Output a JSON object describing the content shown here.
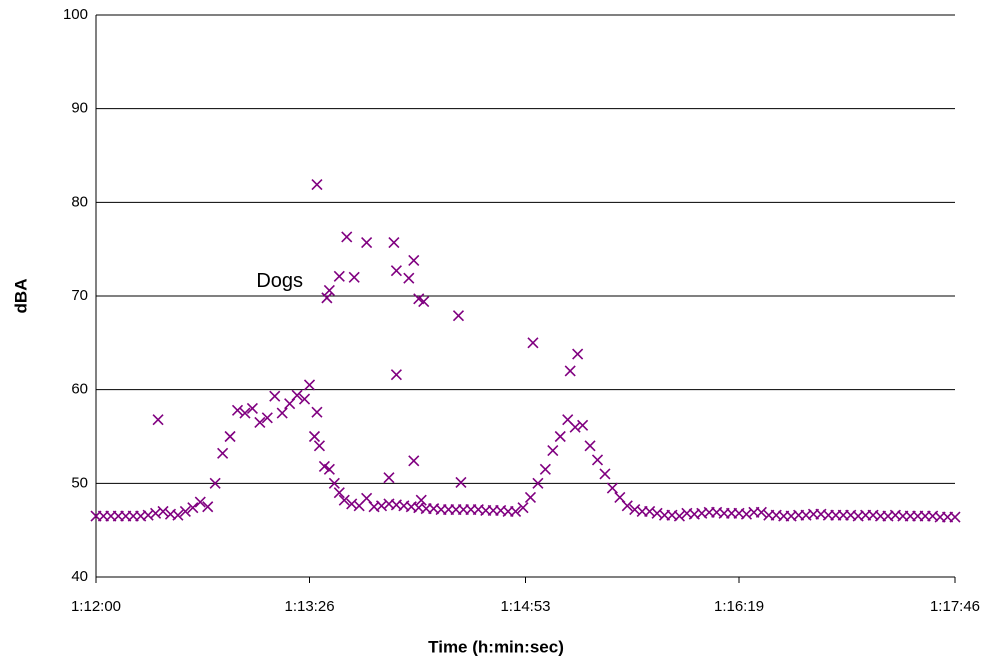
{
  "chart_data": {
    "type": "scatter",
    "x_label": "Time (h:min:sec)",
    "y_label": "dBA",
    "annotations": [
      {
        "text": "Dogs",
        "x": 4394,
        "y": 71.5
      }
    ],
    "xlim": [
      4320,
      4666
    ],
    "xticks": [
      {
        "value": 4320,
        "label": "1:12:00"
      },
      {
        "value": 4406,
        "label": "1:13:26"
      },
      {
        "value": 4493,
        "label": "1:14:53"
      },
      {
        "value": 4579,
        "label": "1:16:19"
      },
      {
        "value": 4666,
        "label": "1:17:46"
      }
    ],
    "ylim": [
      40,
      100
    ],
    "yticks": [
      40,
      50,
      60,
      70,
      80,
      90,
      100
    ],
    "grid": true,
    "series": [
      {
        "color": "#800080",
        "marker": "x",
        "x": [
          4320,
          4323,
          4326,
          4329,
          4332,
          4335,
          4338,
          4341,
          4344,
          4347,
          4350,
          4353,
          4356,
          4359,
          4362,
          4365,
          4368,
          4371,
          4374,
          4377,
          4380,
          4383,
          4386,
          4389,
          4392,
          4395,
          4398,
          4401,
          4404,
          4406,
          4408,
          4410,
          4412,
          4414,
          4416,
          4418,
          4420,
          4423,
          4426,
          4429,
          4432,
          4435,
          4438,
          4441,
          4444,
          4447,
          4450,
          4453,
          4456,
          4459,
          4462,
          4465,
          4468,
          4471,
          4474,
          4477,
          4480,
          4483,
          4486,
          4489,
          4492,
          4495,
          4498,
          4501,
          4504,
          4507,
          4510,
          4513,
          4516,
          4519,
          4522,
          4525,
          4528,
          4531,
          4534,
          4537,
          4540,
          4543,
          4546,
          4549,
          4552,
          4555,
          4558,
          4561,
          4564,
          4567,
          4570,
          4573,
          4576,
          4579,
          4582,
          4585,
          4588,
          4591,
          4594,
          4597,
          4600,
          4603,
          4606,
          4609,
          4612,
          4615,
          4618,
          4621,
          4624,
          4627,
          4630,
          4633,
          4636,
          4639,
          4642,
          4645,
          4648,
          4651,
          4654,
          4657,
          4660,
          4663,
          4666,
          4345,
          4409,
          4421,
          4418,
          4424,
          4429,
          4440,
          4441,
          4446,
          4448,
          4450,
          4452,
          4413,
          4414,
          4466,
          4496,
          4511,
          4514,
          4441,
          4448,
          4438,
          4467,
          4409,
          4451
        ],
        "values": [
          46.5,
          46.5,
          46.5,
          46.5,
          46.5,
          46.5,
          46.5,
          46.6,
          46.8,
          47,
          46.7,
          46.6,
          47,
          47.4,
          48,
          47.5,
          50,
          53.2,
          55,
          57.8,
          57.5,
          58,
          56.5,
          57,
          59.3,
          57.5,
          58.5,
          59.4,
          59,
          60.5,
          55,
          54,
          51.8,
          51.5,
          50,
          49,
          48.2,
          47.8,
          47.6,
          48.4,
          47.5,
          47.6,
          47.8,
          47.7,
          47.6,
          47.5,
          47.4,
          47.3,
          47.3,
          47.2,
          47.2,
          47.2,
          47.2,
          47.2,
          47.2,
          47.1,
          47.1,
          47.1,
          47,
          47,
          47.4,
          48.5,
          50,
          51.5,
          53.5,
          55,
          56.8,
          56,
          56.2,
          54,
          52.5,
          51,
          49.5,
          48.5,
          47.6,
          47.2,
          47,
          47,
          46.8,
          46.6,
          46.6,
          46.5,
          46.8,
          46.7,
          46.8,
          46.9,
          46.9,
          46.8,
          46.8,
          46.8,
          46.7,
          46.9,
          46.9,
          46.6,
          46.6,
          46.5,
          46.5,
          46.6,
          46.6,
          46.7,
          46.7,
          46.6,
          46.6,
          46.6,
          46.6,
          46.5,
          46.6,
          46.6,
          46.5,
          46.5,
          46.6,
          46.5,
          46.5,
          46.5,
          46.5,
          46.5,
          46.4,
          46.4,
          46.4,
          56.8,
          81.9,
          76.3,
          72.1,
          72,
          75.7,
          75.7,
          72.7,
          71.9,
          73.8,
          69.7,
          69.4,
          69.8,
          70.6,
          67.9,
          65,
          62,
          63.8,
          61.6,
          52.4,
          50.6,
          50.1,
          57.6,
          48.2
        ]
      }
    ]
  }
}
